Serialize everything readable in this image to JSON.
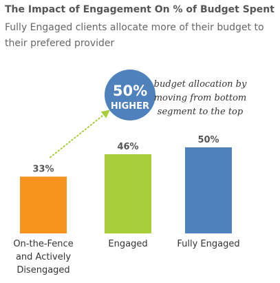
{
  "chart_data": {
    "type": "bar",
    "title": "The Impact of Engagement On % of Budget Spent",
    "subtitle": "Fully Engaged clients allocate more of their budget to their prefered provider",
    "categories": [
      [
        "On-the-Fence",
        "and Actively",
        "Disengaged"
      ],
      [
        "Engaged"
      ],
      [
        "Fully Engaged"
      ]
    ],
    "values": [
      33,
      46,
      50
    ],
    "value_labels": [
      "33%",
      "46%",
      "50%"
    ],
    "colors": [
      "#f7941d",
      "#a6ce39",
      "#4f81bd"
    ],
    "ylim": [
      0,
      65
    ],
    "grid": false,
    "annotation": {
      "badge_lines": [
        "50%",
        "HIGHER"
      ],
      "badge_color": "#4f81bd",
      "note_lines": [
        "budget allocation by",
        "moving from bottom",
        "segment to the top"
      ],
      "arrow_color": "#a6ce39"
    }
  }
}
